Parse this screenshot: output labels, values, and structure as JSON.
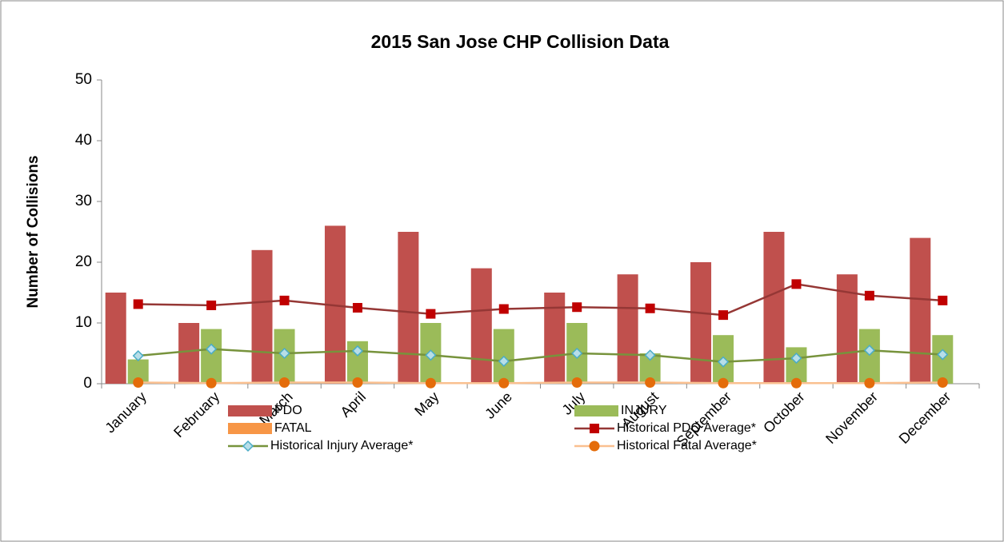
{
  "chart_data": {
    "type": "bar",
    "title": "2015 San Jose CHP Collision Data",
    "y_label": "Number of Collisions",
    "categories": [
      "January",
      "February",
      "March",
      "April",
      "May",
      "June",
      "July",
      "August",
      "September",
      "October",
      "November",
      "December"
    ],
    "series": [
      {
        "name": "PDO",
        "type": "bar",
        "color": "#c0504d",
        "values": [
          15,
          10,
          22,
          26,
          25,
          19,
          15,
          18,
          20,
          25,
          18,
          24
        ]
      },
      {
        "name": "INJURY",
        "type": "bar",
        "color": "#9bbb59",
        "values": [
          4,
          9,
          9,
          7,
          10,
          9,
          10,
          5,
          8,
          6,
          9,
          8
        ]
      },
      {
        "name": "FATAL",
        "type": "bar",
        "color": "#f79646",
        "values": [
          0,
          0,
          0,
          0,
          0,
          0,
          0,
          0,
          0,
          0,
          0,
          0
        ]
      },
      {
        "name": "Historical PDO Average*",
        "type": "line",
        "color": "#953735",
        "marker": "square",
        "marker_color": "#c00000",
        "values": [
          13.1,
          12.9,
          13.7,
          12.5,
          11.5,
          12.3,
          12.6,
          12.4,
          11.3,
          16.4,
          14.5,
          13.7
        ]
      },
      {
        "name": "Historical Injury Average*",
        "type": "line",
        "color": "#77933c",
        "marker": "diamond",
        "marker_color": "#b7dee8",
        "values": [
          4.6,
          5.7,
          5.0,
          5.4,
          4.7,
          3.7,
          5.0,
          4.7,
          3.6,
          4.2,
          5.5,
          4.8
        ]
      },
      {
        "name": "Historical Fatal Average*",
        "type": "line",
        "color": "#fac090",
        "marker": "circle",
        "marker_color": "#e46c0a",
        "values": [
          0.2,
          0.1,
          0.2,
          0.2,
          0.1,
          0.1,
          0.2,
          0.2,
          0.1,
          0.1,
          0.1,
          0.2
        ]
      }
    ],
    "ylim": [
      0,
      50
    ],
    "yticks": [
      0,
      10,
      20,
      30,
      40,
      50
    ],
    "grid": false
  }
}
